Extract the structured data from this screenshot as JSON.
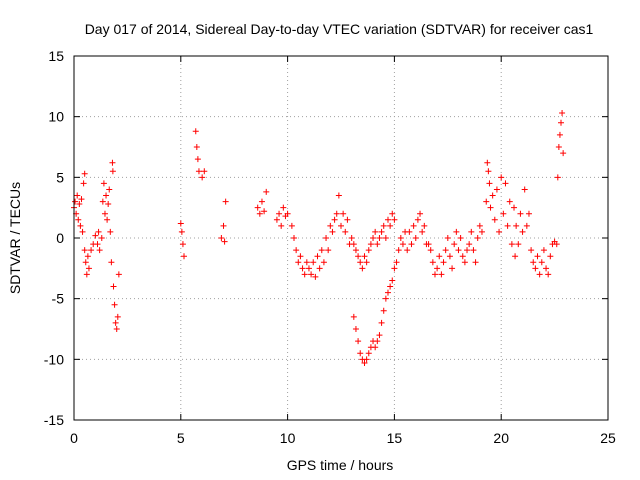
{
  "chart_data": {
    "type": "scatter",
    "title": "Day 017 of 2014, Sidereal Day-to-day VTEC variation (SDTVAR) for receiver cas1",
    "xlabel": "GPS time / hours",
    "ylabel": "SDTVAR / TECUs",
    "xlim": [
      0,
      25
    ],
    "ylim": [
      -15,
      15
    ],
    "xticks": [
      0,
      5,
      10,
      15,
      20,
      25
    ],
    "yticks": [
      -15,
      -10,
      -5,
      0,
      5,
      10,
      15
    ],
    "xtick_labels": [
      "0",
      "5",
      "10",
      "15",
      "20",
      "25"
    ],
    "ytick_labels": [
      "-15",
      "-10",
      "-5",
      "0",
      "5",
      "10",
      "15"
    ],
    "grid": true,
    "marker": "+",
    "color": "#ff0000",
    "series": [
      {
        "name": "SDTVAR",
        "points": [
          [
            0.0,
            2.5
          ],
          [
            0.05,
            3.0
          ],
          [
            0.1,
            2.0
          ],
          [
            0.15,
            3.5
          ],
          [
            0.2,
            1.5
          ],
          [
            0.25,
            2.8
          ],
          [
            0.3,
            1.0
          ],
          [
            0.35,
            3.2
          ],
          [
            0.4,
            0.5
          ],
          [
            0.45,
            4.5
          ],
          [
            0.5,
            5.3
          ],
          [
            0.5,
            -1.0
          ],
          [
            0.55,
            -2.0
          ],
          [
            0.6,
            -3.0
          ],
          [
            0.65,
            -1.5
          ],
          [
            0.7,
            -2.5
          ],
          [
            0.8,
            -1.0
          ],
          [
            0.9,
            -0.5
          ],
          [
            1.0,
            0.2
          ],
          [
            1.1,
            -0.5
          ],
          [
            1.15,
            0.5
          ],
          [
            1.2,
            -1.0
          ],
          [
            1.3,
            0.0
          ],
          [
            1.35,
            3.0
          ],
          [
            1.4,
            4.5
          ],
          [
            1.45,
            2.0
          ],
          [
            1.5,
            3.5
          ],
          [
            1.55,
            1.5
          ],
          [
            1.6,
            2.8
          ],
          [
            1.65,
            4.0
          ],
          [
            1.7,
            0.5
          ],
          [
            1.75,
            -2.0
          ],
          [
            1.8,
            6.2
          ],
          [
            1.82,
            5.5
          ],
          [
            1.85,
            -4.0
          ],
          [
            1.9,
            -5.5
          ],
          [
            1.95,
            -7.0
          ],
          [
            2.0,
            -7.5
          ],
          [
            2.05,
            -6.5
          ],
          [
            2.1,
            -3.0
          ],
          [
            5.0,
            1.2
          ],
          [
            5.05,
            0.5
          ],
          [
            5.1,
            -0.5
          ],
          [
            5.15,
            -1.5
          ],
          [
            5.7,
            8.8
          ],
          [
            5.75,
            7.5
          ],
          [
            5.8,
            6.5
          ],
          [
            5.85,
            5.5
          ],
          [
            6.0,
            5.0
          ],
          [
            6.1,
            5.5
          ],
          [
            6.9,
            0.0
          ],
          [
            7.0,
            1.0
          ],
          [
            7.05,
            -0.3
          ],
          [
            7.1,
            3.0
          ],
          [
            8.6,
            2.5
          ],
          [
            8.7,
            2.0
          ],
          [
            8.8,
            3.0
          ],
          [
            8.9,
            2.2
          ],
          [
            9.0,
            3.8
          ],
          [
            9.5,
            1.5
          ],
          [
            9.6,
            2.0
          ],
          [
            9.7,
            1.0
          ],
          [
            9.8,
            2.5
          ],
          [
            9.9,
            1.8
          ],
          [
            10.0,
            2.0
          ],
          [
            10.2,
            1.0
          ],
          [
            10.3,
            0.0
          ],
          [
            10.4,
            -1.0
          ],
          [
            10.5,
            -2.0
          ],
          [
            10.6,
            -1.5
          ],
          [
            10.7,
            -2.5
          ],
          [
            10.8,
            -3.0
          ],
          [
            10.9,
            -2.0
          ],
          [
            11.0,
            -2.5
          ],
          [
            11.1,
            -3.0
          ],
          [
            11.2,
            -2.0
          ],
          [
            11.3,
            -3.2
          ],
          [
            11.4,
            -1.5
          ],
          [
            11.5,
            -2.5
          ],
          [
            11.6,
            -1.0
          ],
          [
            11.7,
            -2.0
          ],
          [
            11.8,
            0.0
          ],
          [
            11.9,
            -1.0
          ],
          [
            12.0,
            1.0
          ],
          [
            12.1,
            0.5
          ],
          [
            12.2,
            1.5
          ],
          [
            12.3,
            2.0
          ],
          [
            12.4,
            3.5
          ],
          [
            12.5,
            1.0
          ],
          [
            12.6,
            2.0
          ],
          [
            12.7,
            0.5
          ],
          [
            12.8,
            1.5
          ],
          [
            12.9,
            -0.5
          ],
          [
            13.0,
            0.0
          ],
          [
            13.1,
            -0.5
          ],
          [
            13.2,
            -1.0
          ],
          [
            13.3,
            -1.5
          ],
          [
            13.4,
            -2.0
          ],
          [
            13.5,
            -2.5
          ],
          [
            13.6,
            -1.5
          ],
          [
            13.7,
            -2.0
          ],
          [
            13.8,
            -1.0
          ],
          [
            13.9,
            -0.5
          ],
          [
            14.0,
            0.0
          ],
          [
            14.1,
            0.5
          ],
          [
            14.2,
            -0.5
          ],
          [
            14.3,
            0.0
          ],
          [
            14.4,
            0.5
          ],
          [
            14.5,
            1.0
          ],
          [
            14.6,
            0.0
          ],
          [
            14.7,
            1.5
          ],
          [
            14.8,
            1.0
          ],
          [
            14.9,
            2.0
          ],
          [
            15.0,
            1.5
          ],
          [
            13.1,
            -6.5
          ],
          [
            13.2,
            -7.5
          ],
          [
            13.3,
            -8.5
          ],
          [
            13.4,
            -9.5
          ],
          [
            13.5,
            -10.0
          ],
          [
            13.6,
            -10.3
          ],
          [
            13.7,
            -10.0
          ],
          [
            13.8,
            -9.5
          ],
          [
            13.9,
            -9.0
          ],
          [
            14.0,
            -8.5
          ],
          [
            14.1,
            -9.0
          ],
          [
            14.2,
            -8.5
          ],
          [
            14.3,
            -8.0
          ],
          [
            14.4,
            -7.0
          ],
          [
            14.5,
            -6.0
          ],
          [
            14.6,
            -5.0
          ],
          [
            14.7,
            -4.5
          ],
          [
            14.8,
            -4.0
          ],
          [
            14.9,
            -3.5
          ],
          [
            15.0,
            -2.5
          ],
          [
            15.1,
            -2.0
          ],
          [
            15.2,
            -1.0
          ],
          [
            15.3,
            0.0
          ],
          [
            15.4,
            -0.5
          ],
          [
            15.5,
            0.5
          ],
          [
            15.6,
            -1.0
          ],
          [
            15.7,
            0.5
          ],
          [
            15.8,
            -0.5
          ],
          [
            15.9,
            1.0
          ],
          [
            16.0,
            0.0
          ],
          [
            16.1,
            1.5
          ],
          [
            16.2,
            2.0
          ],
          [
            16.3,
            0.5
          ],
          [
            16.4,
            1.0
          ],
          [
            16.5,
            -0.5
          ],
          [
            16.6,
            -0.5
          ],
          [
            16.7,
            -1.0
          ],
          [
            16.8,
            -2.0
          ],
          [
            16.9,
            -3.0
          ],
          [
            17.0,
            -2.5
          ],
          [
            17.1,
            -1.5
          ],
          [
            17.2,
            -3.0
          ],
          [
            17.3,
            -2.0
          ],
          [
            17.4,
            -1.0
          ],
          [
            17.5,
            0.0
          ],
          [
            17.6,
            -1.5
          ],
          [
            17.7,
            -2.5
          ],
          [
            17.8,
            -0.5
          ],
          [
            17.9,
            0.5
          ],
          [
            18.0,
            -1.0
          ],
          [
            18.1,
            0.0
          ],
          [
            18.2,
            -1.5
          ],
          [
            18.3,
            -2.0
          ],
          [
            18.4,
            -1.0
          ],
          [
            18.5,
            -0.5
          ],
          [
            18.6,
            0.5
          ],
          [
            18.7,
            -1.0
          ],
          [
            18.8,
            -2.0
          ],
          [
            18.9,
            0.0
          ],
          [
            19.0,
            1.0
          ],
          [
            19.1,
            0.5
          ],
          [
            19.3,
            3.0
          ],
          [
            19.35,
            6.2
          ],
          [
            19.4,
            5.5
          ],
          [
            19.45,
            4.5
          ],
          [
            19.5,
            2.5
          ],
          [
            19.6,
            3.5
          ],
          [
            19.7,
            1.5
          ],
          [
            19.8,
            4.0
          ],
          [
            19.9,
            0.5
          ],
          [
            20.0,
            5.0
          ],
          [
            20.1,
            2.0
          ],
          [
            20.2,
            4.5
          ],
          [
            20.3,
            1.0
          ],
          [
            20.4,
            3.0
          ],
          [
            20.5,
            -0.5
          ],
          [
            20.6,
            2.5
          ],
          [
            20.65,
            -1.5
          ],
          [
            20.7,
            1.0
          ],
          [
            20.8,
            -0.5
          ],
          [
            20.9,
            2.0
          ],
          [
            21.0,
            0.5
          ],
          [
            21.1,
            4.0
          ],
          [
            21.2,
            1.0
          ],
          [
            21.3,
            2.0
          ],
          [
            21.4,
            -1.0
          ],
          [
            21.5,
            -2.0
          ],
          [
            21.6,
            -2.5
          ],
          [
            21.7,
            -1.5
          ],
          [
            21.8,
            -3.0
          ],
          [
            21.9,
            -2.0
          ],
          [
            22.0,
            -1.0
          ],
          [
            22.1,
            -2.5
          ],
          [
            22.2,
            -3.0
          ],
          [
            22.3,
            -1.5
          ],
          [
            22.4,
            -0.5
          ],
          [
            22.5,
            -0.3
          ],
          [
            22.6,
            -0.5
          ],
          [
            22.65,
            5.0
          ],
          [
            22.7,
            7.5
          ],
          [
            22.75,
            8.5
          ],
          [
            22.8,
            9.5
          ],
          [
            22.85,
            10.3
          ],
          [
            22.9,
            7.0
          ]
        ]
      }
    ]
  }
}
